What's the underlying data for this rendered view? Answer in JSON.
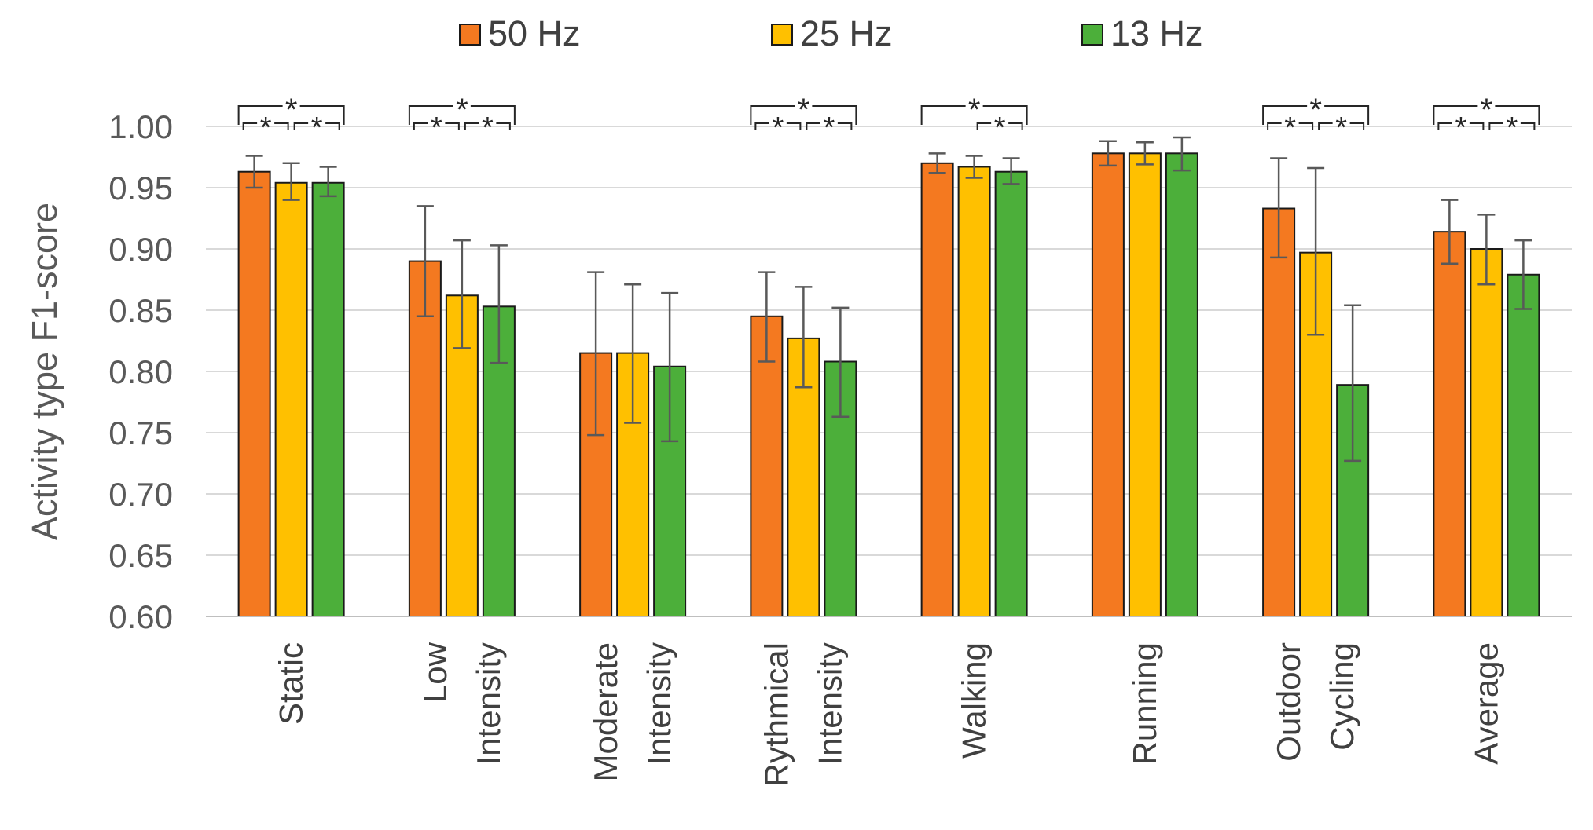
{
  "chart_data": {
    "type": "bar",
    "title": "",
    "ylabel": "Activity type F1-score",
    "xlabel": "",
    "ylim": [
      0.6,
      1.0
    ],
    "yticks": [
      0.6,
      0.65,
      0.7,
      0.75,
      0.8,
      0.85,
      0.9,
      0.95,
      1.0
    ],
    "ytick_labels": [
      "0.60",
      "0.65",
      "0.70",
      "0.75",
      "0.80",
      "0.85",
      "0.90",
      "0.95",
      "1.00"
    ],
    "grid": true,
    "legend_position": "top-center",
    "categories": [
      [
        "Static"
      ],
      [
        "Low",
        "Intensity"
      ],
      [
        "Moderate",
        "Intensity"
      ],
      [
        "Rythmical",
        "Intensity"
      ],
      [
        "Walking"
      ],
      [
        "Running"
      ],
      [
        "Outdoor",
        "Cycling"
      ],
      [
        "Average"
      ]
    ],
    "series": [
      {
        "name": "50 Hz",
        "color": "#F47920",
        "values": [
          0.963,
          0.89,
          0.815,
          0.845,
          0.97,
          0.978,
          0.933,
          0.914
        ],
        "error_low": [
          0.95,
          0.845,
          0.748,
          0.808,
          0.962,
          0.968,
          0.893,
          0.888
        ],
        "error_high": [
          0.976,
          0.935,
          0.881,
          0.881,
          0.978,
          0.988,
          0.974,
          0.94
        ]
      },
      {
        "name": "25 Hz",
        "color": "#FFC000",
        "values": [
          0.954,
          0.862,
          0.815,
          0.827,
          0.967,
          0.978,
          0.897,
          0.9
        ],
        "error_low": [
          0.94,
          0.819,
          0.758,
          0.787,
          0.958,
          0.969,
          0.83,
          0.871
        ],
        "error_high": [
          0.97,
          0.907,
          0.871,
          0.869,
          0.976,
          0.987,
          0.966,
          0.928
        ]
      },
      {
        "name": "13 Hz",
        "color": "#4CAF3A",
        "values": [
          0.954,
          0.853,
          0.804,
          0.808,
          0.963,
          0.978,
          0.789,
          0.879
        ],
        "error_low": [
          0.943,
          0.807,
          0.743,
          0.763,
          0.953,
          0.964,
          0.727,
          0.851
        ],
        "error_high": [
          0.967,
          0.903,
          0.864,
          0.852,
          0.974,
          0.991,
          0.854,
          0.907
        ]
      }
    ],
    "significance": [
      {
        "category": 0,
        "pairs": [
          [
            0,
            2,
            "*",
            "top"
          ],
          [
            0,
            1,
            "*",
            "low"
          ],
          [
            1,
            2,
            "*",
            "low"
          ]
        ]
      },
      {
        "category": 1,
        "pairs": [
          [
            0,
            2,
            "*",
            "top"
          ],
          [
            0,
            1,
            "*",
            "low"
          ],
          [
            1,
            2,
            "*",
            "low"
          ]
        ]
      },
      {
        "category": 3,
        "pairs": [
          [
            0,
            2,
            "*",
            "top"
          ],
          [
            0,
            1,
            "*",
            "low"
          ],
          [
            1,
            2,
            "*",
            "low"
          ]
        ]
      },
      {
        "category": 4,
        "pairs": [
          [
            0,
            2,
            "*",
            "top"
          ],
          [
            1,
            2,
            "*",
            "low"
          ]
        ]
      },
      {
        "category": 6,
        "pairs": [
          [
            0,
            2,
            "*",
            "top"
          ],
          [
            0,
            1,
            "*",
            "low"
          ],
          [
            1,
            2,
            "*",
            "low"
          ]
        ]
      },
      {
        "category": 7,
        "pairs": [
          [
            0,
            2,
            "*",
            "top"
          ],
          [
            0,
            1,
            "*",
            "low"
          ],
          [
            1,
            2,
            "*",
            "low"
          ]
        ]
      }
    ]
  }
}
